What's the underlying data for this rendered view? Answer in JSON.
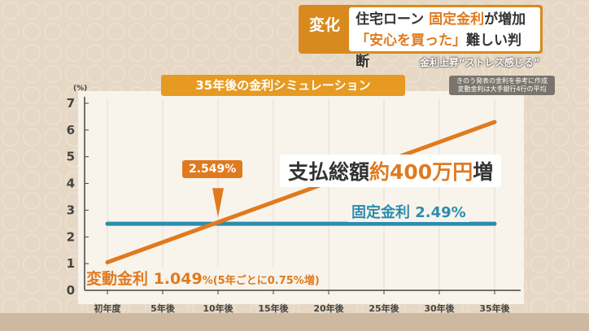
{
  "header": {
    "tag": "変化",
    "line1_a": "住宅ローン ",
    "line1_b": "固定金利",
    "line1_c": "が増加",
    "line2_a": "「安心を買った」",
    "line2_b": "難しい判断",
    "sub": "金利上昇“ストレス感じる”"
  },
  "note": {
    "line1": "きのう発表の金利を参考に作成",
    "line2": "変動金利は大手銀行4行の平均"
  },
  "banner": "35年後の金利シミュレーション",
  "headline": {
    "a": "支払総額",
    "b": "約400万円",
    "c": "増"
  },
  "callout": "2.549%",
  "fixed_label": "固定金利 2.49%",
  "variable_label": {
    "main": "変動金利 1.049",
    "small": "%(5年ごとに0.75%増)"
  },
  "colors": {
    "variable": "#e07a1f",
    "fixed": "#2d8cae"
  },
  "chart_data": {
    "type": "line",
    "ylabel": "(%)",
    "ylim": [
      0,
      7
    ],
    "yticks": [
      "0",
      "1",
      "2",
      "3",
      "4",
      "5",
      "6",
      "7"
    ],
    "categories": [
      "初年度",
      "5年後",
      "10年後",
      "15年後",
      "20年後",
      "25年後",
      "30年後",
      "35年後"
    ],
    "series": [
      {
        "name": "変動金利",
        "values": [
          1.049,
          1.799,
          2.549,
          3.299,
          4.049,
          4.799,
          5.549,
          6.299
        ]
      },
      {
        "name": "固定金利",
        "values": [
          2.49,
          2.49,
          2.49,
          2.49,
          2.49,
          2.49,
          2.49,
          2.49
        ]
      }
    ],
    "annotation": {
      "x": "10年後",
      "y": 2.549,
      "text": "2.549%"
    }
  }
}
